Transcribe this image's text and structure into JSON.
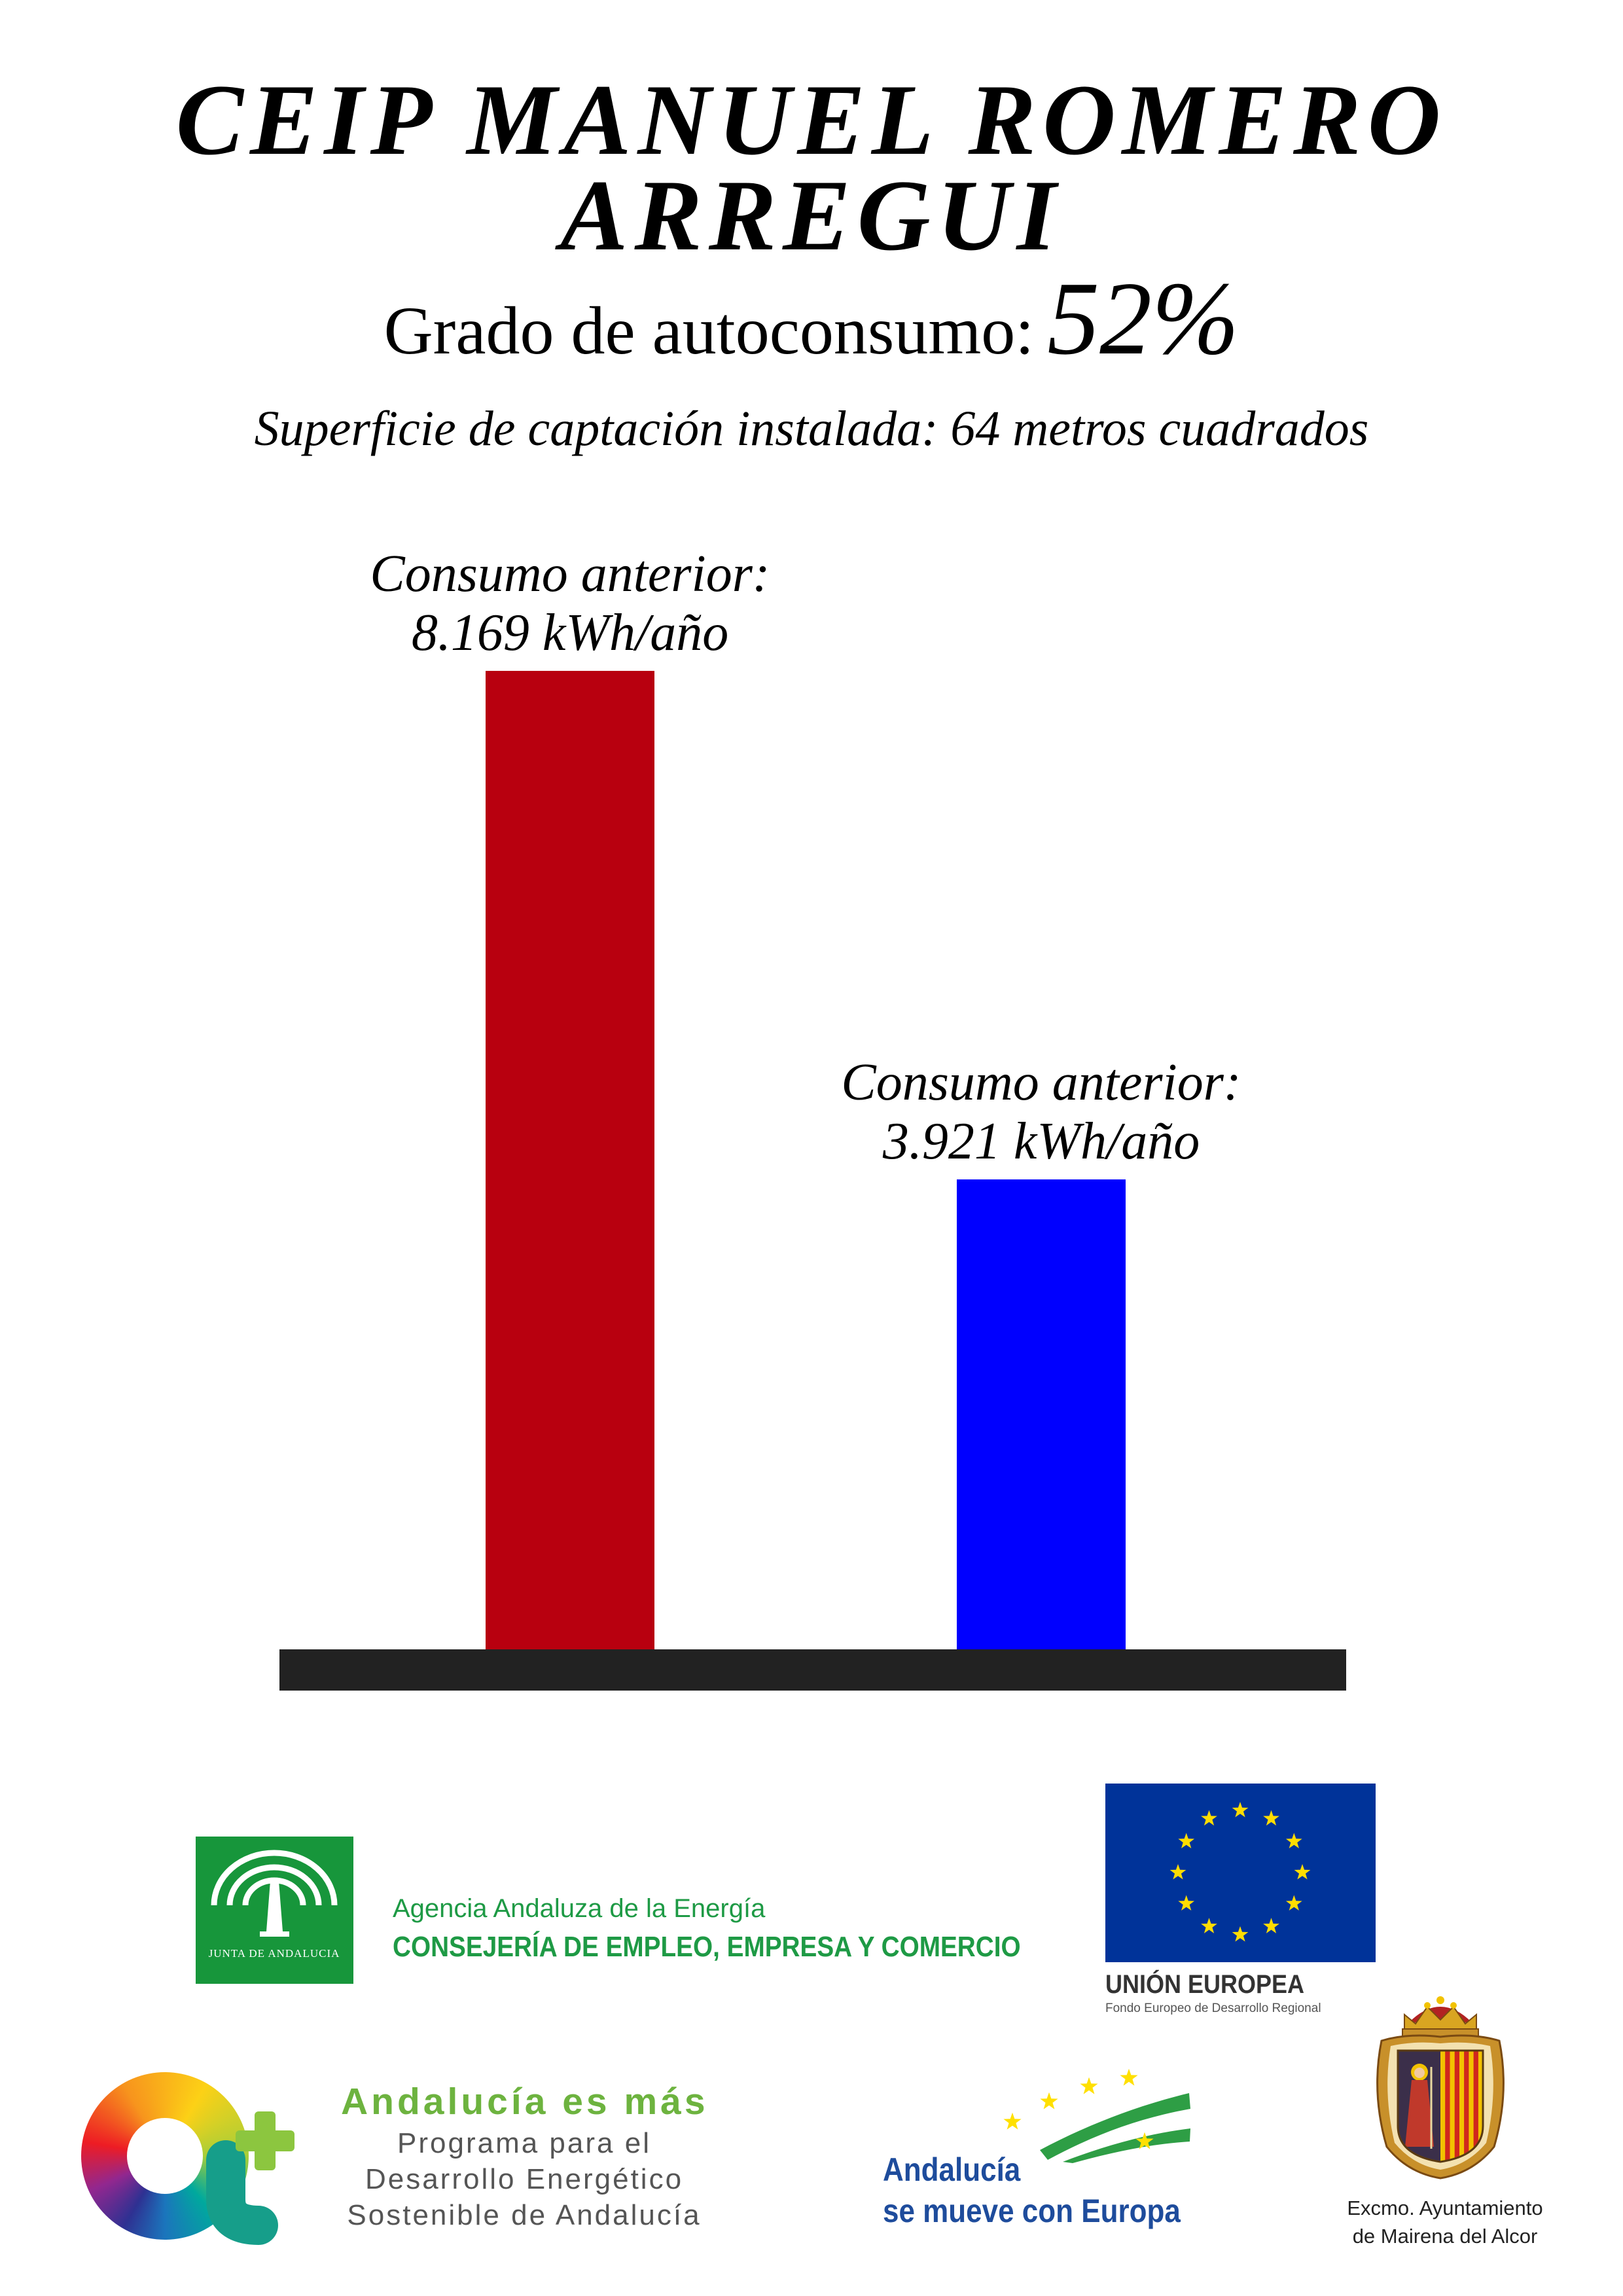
{
  "poster": {
    "title_line1": "CEIP MANUEL ROMERO",
    "title_line2": "ARREGUI",
    "autoconsumo_label": "Grado de autoconsumo:",
    "autoconsumo_value": "52%",
    "superficie": "Superficie de captación instalada: 64 metros cuadrados"
  },
  "chart_data": {
    "type": "bar",
    "categories": [
      "Consumo anterior:",
      "Consumo anterior:"
    ],
    "values": [
      8169,
      3921
    ],
    "data_labels": [
      "8.169 kWh/año",
      "3.921 kWh/año"
    ],
    "colors": [
      "#B8000F",
      "#0000FF"
    ],
    "axis_color": "#222222",
    "grid": false
  },
  "logos": {
    "junta": {
      "icon": "junta-de-andalucia-emblem",
      "text": "JUNTA DE ANDALUCIA",
      "color": "#17963B"
    },
    "agencia": {
      "line1": "Agencia Andaluza de la Energía",
      "line2": "CONSEJERÍA DE EMPLEO, EMPRESA Y COMERCIO",
      "color": "#1E9A45"
    },
    "eu": {
      "icon": "eu-flag",
      "title": "UNIÓN EUROPEA",
      "subtitle": "Fondo Europeo de Desarrollo Regional",
      "flag_color": "#003399",
      "star_color": "#FFDD00"
    },
    "andalucia_es_mas": {
      "icon": "andalucia-es-mas-logo",
      "title": "Andalucía es más",
      "line1": "Programa para el",
      "line2": "Desarrollo Energético",
      "line3": "Sostenible de Andalucía",
      "title_color": "#6DB33F",
      "text_color": "#555555"
    },
    "andalucia_europa": {
      "icon": "andalucia-se-mueve-con-europa-emblem",
      "line1": "Andalucía",
      "line2": "se mueve con Europa",
      "color": "#1E4C9C"
    },
    "ayuntamiento": {
      "icon": "coat-of-arms",
      "line1": "Excmo. Ayuntamiento",
      "line2": "de Mairena del Alcor"
    }
  }
}
